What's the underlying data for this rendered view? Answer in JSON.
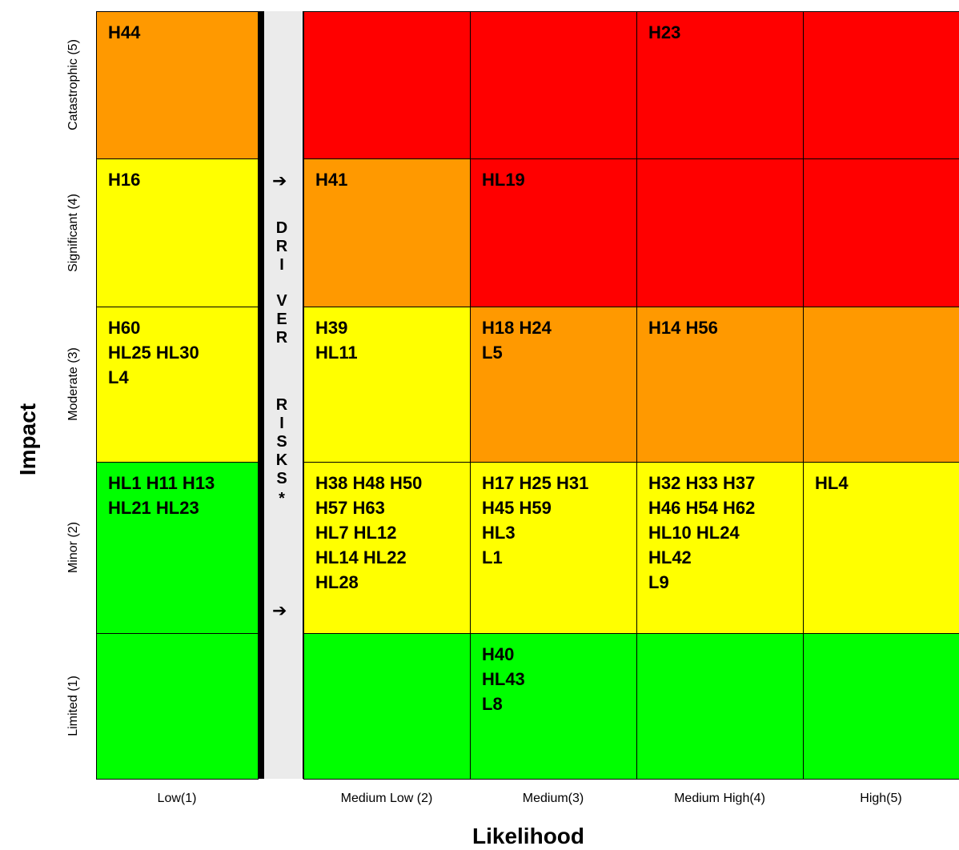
{
  "chart_data": {
    "type": "heatmap",
    "xlabel": "Likelihood",
    "ylabel": "Impact",
    "x_categories": [
      "Low(1)",
      "Medium Low (2)",
      "Medium(3)",
      "Medium High(4)",
      "High(5)"
    ],
    "y_categories": [
      "Catastrophic (5)",
      "Significant (4)",
      "Moderate (3)",
      "Minor (2)",
      "Limited (1)"
    ],
    "colors": {
      "green": "#00ff00",
      "yellow": "#ffff00",
      "orange": "#ff9900",
      "red": "#ff0000",
      "driver_band": "#ebebeb"
    },
    "cells": [
      [
        {
          "color": "orange",
          "text": "H44"
        },
        {
          "color": "red",
          "text": ""
        },
        {
          "color": "red",
          "text": ""
        },
        {
          "color": "red",
          "text": "H23"
        },
        {
          "color": "red",
          "text": ""
        }
      ],
      [
        {
          "color": "yellow",
          "text": "H16"
        },
        {
          "color": "orange",
          "text": "H41"
        },
        {
          "color": "red",
          "text": "HL19"
        },
        {
          "color": "red",
          "text": ""
        },
        {
          "color": "red",
          "text": ""
        }
      ],
      [
        {
          "color": "yellow",
          "text": "H60\nHL25 HL30\nL4"
        },
        {
          "color": "yellow",
          "text": "H39\nHL11"
        },
        {
          "color": "orange",
          "text": "H18 H24\nL5"
        },
        {
          "color": "orange",
          "text": "H14 H56"
        },
        {
          "color": "orange",
          "text": ""
        }
      ],
      [
        {
          "color": "green",
          "text": "HL1 H11 H13\nHL21 HL23"
        },
        {
          "color": "yellow",
          "text": "H38 H48 H50\nH57 H63\nHL7 HL12\nHL14 HL22\nHL28"
        },
        {
          "color": "yellow",
          "text": "H17 H25 H31\nH45 H59\nHL3\nL1"
        },
        {
          "color": "yellow",
          "text": "H32 H33 H37\nH46 H54 H62\nHL10 HL24\nHL42\nL9"
        },
        {
          "color": "yellow",
          "text": "HL4"
        }
      ],
      [
        {
          "color": "green",
          "text": ""
        },
        {
          "color": "green",
          "text": ""
        },
        {
          "color": "green",
          "text": "H40\nHL43\nL8"
        },
        {
          "color": "green",
          "text": ""
        },
        {
          "color": "green",
          "text": ""
        }
      ]
    ],
    "driver_band": {
      "letters": [
        "D",
        "R",
        "I",
        "V",
        "E",
        "R",
        "",
        "R",
        "I",
        "S",
        "K",
        "S",
        "*"
      ],
      "arrow": "➔"
    }
  }
}
